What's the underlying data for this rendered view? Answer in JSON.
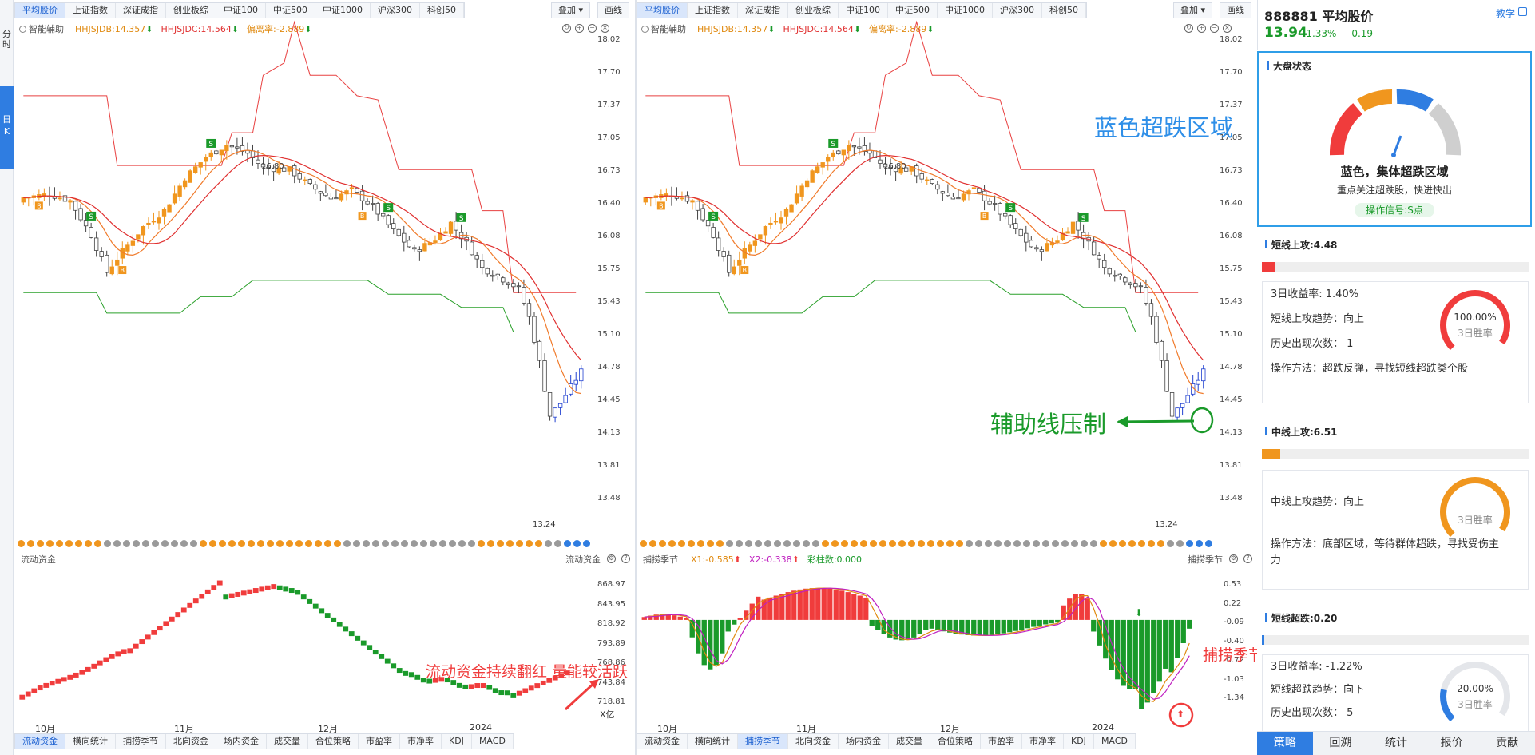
{
  "index_tabs": [
    "平均股价",
    "上证指数",
    "深证成指",
    "创业板综",
    "中证100",
    "中证500",
    "中证1000",
    "沪深300",
    "科创50"
  ],
  "overlay_label": "叠加",
  "draw_label": "画线",
  "left_rail": [
    "分时",
    "日K"
  ],
  "legend": {
    "assist": "智能辅助",
    "jdb": "HHJSJDB:14.357",
    "jdc": "HHJSJDC:14.564",
    "dev": "偏离率:-2.889"
  },
  "price_axis": [
    "18.02",
    "17.70",
    "17.37",
    "17.05",
    "16.73",
    "16.40",
    "16.08",
    "15.75",
    "15.43",
    "15.10",
    "14.78",
    "14.45",
    "14.13",
    "13.81",
    "13.48"
  ],
  "high_label": "16.80",
  "low_label": "13.24",
  "left_indicator": {
    "name": "流动资金",
    "right_name": "流动资金",
    "axis": [
      "868.97",
      "843.95",
      "818.92",
      "793.89",
      "768.86",
      "743.84",
      "718.81"
    ],
    "unit": "X亿"
  },
  "right_indicator": {
    "name": "捕捞季节",
    "right_name": "捕捞季节",
    "x1": "X1:-0.585",
    "x2": "X2:-0.338",
    "bars": "彩柱数:0.000",
    "axis": [
      "0.53",
      "0.22",
      "-0.09",
      "-0.40",
      "-0.72",
      "-1.03",
      "-1.34"
    ]
  },
  "x_axis": [
    "10月",
    "11月",
    "12月",
    "2024"
  ],
  "bottom_tabs": [
    "流动资金",
    "横向统计",
    "捕捞季节",
    "北向资金",
    "场内资金",
    "成交量",
    "合位策略",
    "市盈率",
    "市净率",
    "KDJ",
    "MACD"
  ],
  "left_bottom_active": "流动资金",
  "right_bottom_active": "捕捞季节",
  "annotations": {
    "blue_zone": "蓝色超跌区域",
    "assist_line": "辅助线压制",
    "fund_red": "流动资金持续翻红 量能较活跃",
    "golden_cross": "捕捞季节金叉区域"
  },
  "stock": {
    "code_name": "888881 平均股价",
    "price": "13.94",
    "change_pct": "-1.33%",
    "change": "-0.19",
    "teach": "教学"
  },
  "market_state": {
    "title": "大盘状态",
    "headline": "蓝色，集体超跌区域",
    "sub": "重点关注超跌股，快进快出",
    "signal": "操作信号:S点"
  },
  "short_up": {
    "title": "短线上攻:4.48",
    "bar_fill": 0.05,
    "lines": [
      "3日收益率:  1.40%",
      "短线上攻趋势：向上",
      "历史出现次数：  1",
      "操作方法：超跌反弹，寻找短线超跌类个股"
    ],
    "gauge_value": "100.00%",
    "gauge_label": "3日胜率"
  },
  "mid_up": {
    "title": "中线上攻:6.51",
    "bar_fill": 0.07,
    "lines": [
      "中线上攻趋势：向上",
      "操作方法：底部区域，等待群体超跌，寻找受伤主",
      "力"
    ],
    "gauge_value": "-",
    "gauge_label": "3日胜率"
  },
  "short_drop": {
    "title": "短线超跌:0.20",
    "bar_fill": 0.01,
    "lines": [
      "3日收益率:  -1.22%",
      "短线超跌趋势：向下",
      "历史出现次数：  5"
    ],
    "gauge_value": "20.00%",
    "gauge_label": "3日胜率"
  },
  "bottom_nav": [
    "策略",
    "回溯",
    "统计",
    "报价",
    "贡献"
  ],
  "colors": {
    "up": "#f03c3c",
    "down": "#1a9a2a",
    "accent": "#2f7de1",
    "orange": "#f0961e",
    "ma1": "#f07a2a",
    "ma2": "#e03030"
  }
}
